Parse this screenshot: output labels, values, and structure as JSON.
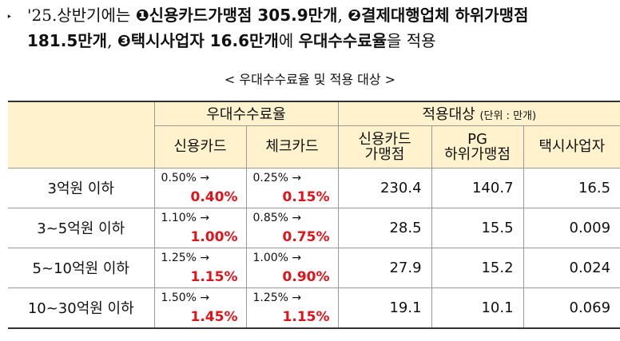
{
  "paragraph": {
    "bullet": "‣",
    "lines": [
      [
        {
          "text": "'25.상반기에는 ",
          "bold": false
        },
        {
          "text": "❶신용카드가맹점 305.9만개",
          "bold": true
        },
        {
          "text": ", ",
          "bold": false
        },
        {
          "text": "❷결제대행업체 하위가맹점",
          "bold": true
        }
      ],
      [
        {
          "text": "181.5만개",
          "bold": true
        },
        {
          "text": ", ",
          "bold": false
        },
        {
          "text": "❸택시사업자 16.6만개",
          "bold": true
        },
        {
          "text": "에 ",
          "bold": false
        },
        {
          "text": "우대수수료율",
          "bold": true
        },
        {
          "text": "을 적용",
          "bold": false
        }
      ]
    ]
  },
  "caption": "< 우대수수료율 및 적용 대상 >",
  "table": {
    "header": {
      "rate_group": "우대수수료율",
      "target_group": "적용대상",
      "unit": "(단위 : 만개)",
      "columns": [
        [
          "신용카드"
        ],
        [
          "체크카드"
        ],
        [
          "신용카드",
          "가맹점"
        ],
        [
          "PG",
          "하위가맹점"
        ],
        [
          "택시사업자"
        ]
      ]
    },
    "rows": [
      {
        "label": "3억원 이하",
        "credit": {
          "from": "0.50% →",
          "to": "0.40%"
        },
        "check": {
          "from": "0.25% →",
          "to": "0.15%"
        },
        "merchants": "230.4",
        "pg": "140.7",
        "taxi": "16.5"
      },
      {
        "label": "3~5억원 이하",
        "credit": {
          "from": "1.10% →",
          "to": "1.00%"
        },
        "check": {
          "from": "0.85% →",
          "to": "0.75%"
        },
        "merchants": "28.5",
        "pg": "15.5",
        "taxi": "0.009"
      },
      {
        "label": "5~10억원 이하",
        "credit": {
          "from": "1.25% →",
          "to": "1.15%"
        },
        "check": {
          "from": "1.00% →",
          "to": "0.90%"
        },
        "merchants": "27.9",
        "pg": "15.2",
        "taxi": "0.024"
      },
      {
        "label": "10~30억원 이하",
        "credit": {
          "from": "1.50% →",
          "to": "1.45%"
        },
        "check": {
          "from": "1.25% →",
          "to": "1.15%"
        },
        "merchants": "19.1",
        "pg": "10.1",
        "taxi": "0.069"
      }
    ]
  }
}
